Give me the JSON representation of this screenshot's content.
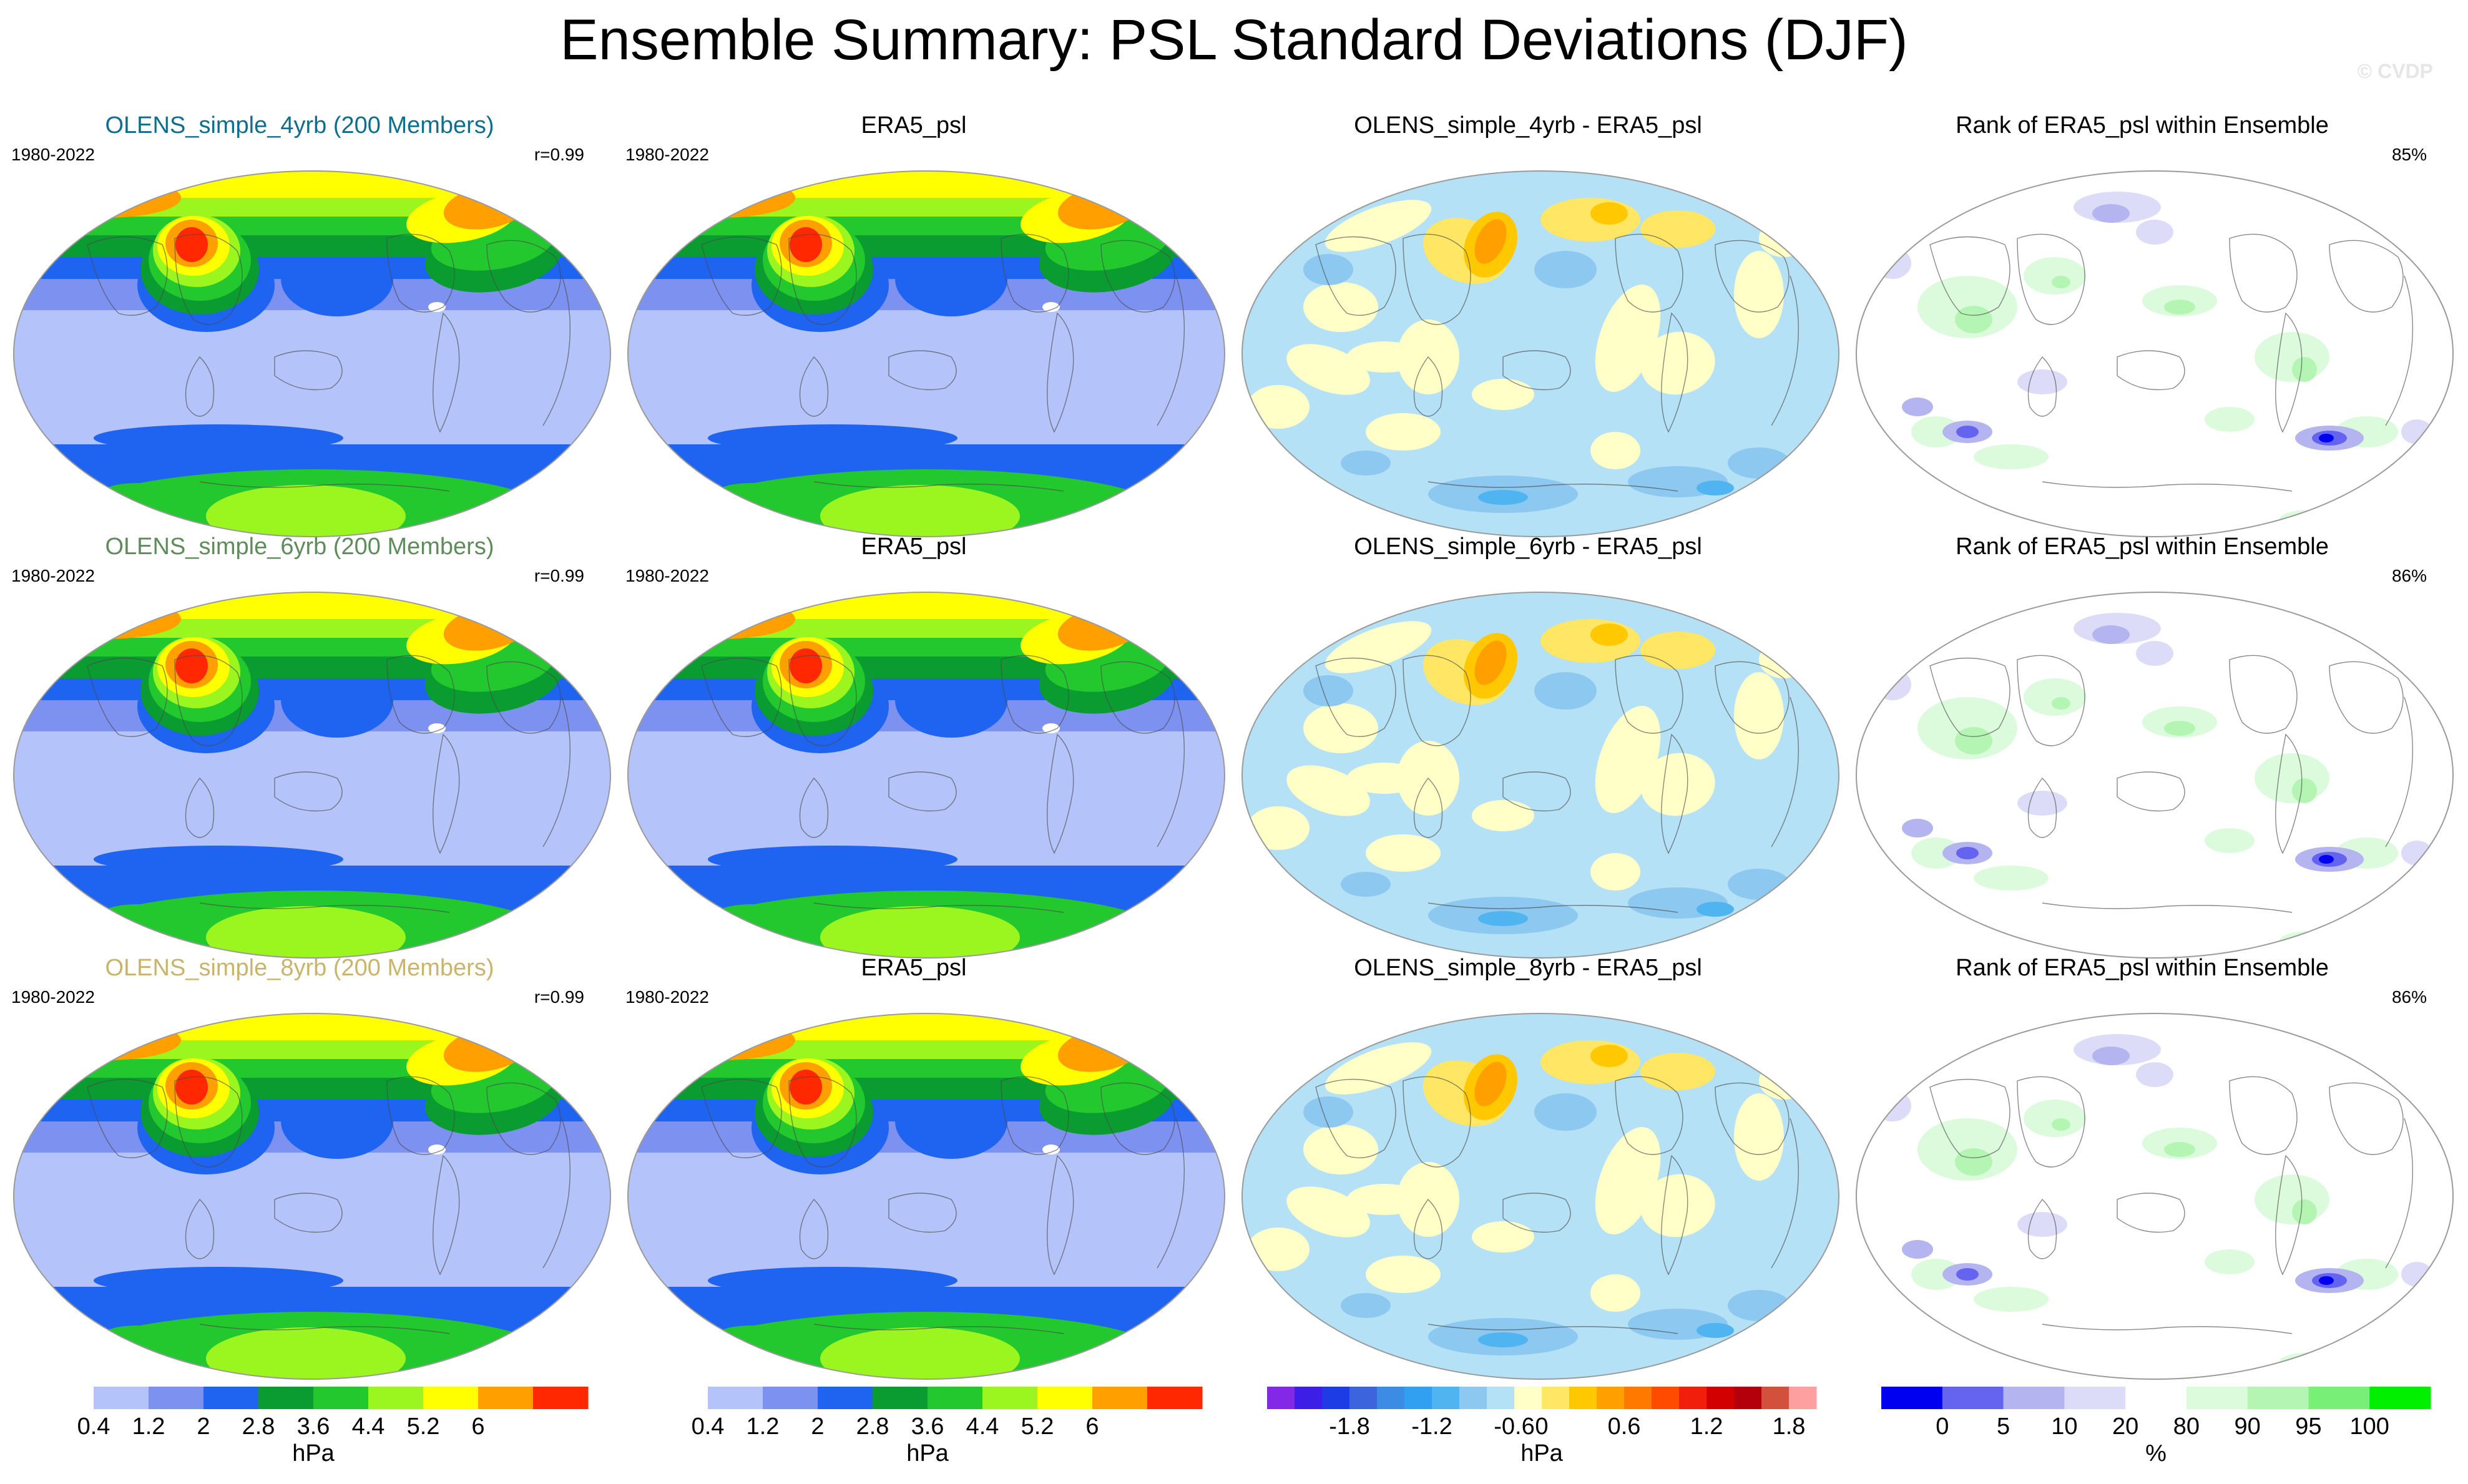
{
  "title": "Ensemble Summary: PSL Standard Deviations (DJF)",
  "copyright": "© CVDP",
  "chart_data": [
    {
      "type": "heatmap",
      "title": "OLENS_simple_4yrb (200 Members)",
      "title_color": "#0e6e8c",
      "period": "1980-2022",
      "stat": "r=0.99",
      "scale": "sd",
      "units": "hPa"
    },
    {
      "type": "heatmap",
      "title": "ERA5_psl",
      "title_color": "#000000",
      "period": "1980-2022",
      "stat": "",
      "scale": "sd",
      "units": "hPa"
    },
    {
      "type": "heatmap",
      "title": "OLENS_simple_4yrb - ERA5_psl",
      "title_color": "#000000",
      "period": "",
      "stat": "",
      "scale": "diff",
      "units": "hPa"
    },
    {
      "type": "heatmap",
      "title": "Rank of ERA5_psl within Ensemble",
      "title_color": "#000000",
      "period": "",
      "stat": "85%",
      "scale": "rank",
      "units": "%"
    },
    {
      "type": "heatmap",
      "title": "OLENS_simple_6yrb (200 Members)",
      "title_color": "#5e8c5a",
      "period": "1980-2022",
      "stat": "r=0.99",
      "scale": "sd",
      "units": "hPa"
    },
    {
      "type": "heatmap",
      "title": "ERA5_psl",
      "title_color": "#000000",
      "period": "1980-2022",
      "stat": "",
      "scale": "sd",
      "units": "hPa"
    },
    {
      "type": "heatmap",
      "title": "OLENS_simple_6yrb - ERA5_psl",
      "title_color": "#000000",
      "period": "",
      "stat": "",
      "scale": "diff",
      "units": "hPa"
    },
    {
      "type": "heatmap",
      "title": "Rank of ERA5_psl within Ensemble",
      "title_color": "#000000",
      "period": "",
      "stat": "86%",
      "scale": "rank",
      "units": "%"
    },
    {
      "type": "heatmap",
      "title": "OLENS_simple_8yrb (200 Members)",
      "title_color": "#c9b46e",
      "period": "1980-2022",
      "stat": "r=0.99",
      "scale": "sd",
      "units": "hPa"
    },
    {
      "type": "heatmap",
      "title": "ERA5_psl",
      "title_color": "#000000",
      "period": "1980-2022",
      "stat": "",
      "scale": "sd",
      "units": "hPa"
    },
    {
      "type": "heatmap",
      "title": "OLENS_simple_8yrb - ERA5_psl",
      "title_color": "#000000",
      "period": "",
      "stat": "",
      "scale": "diff",
      "units": "hPa"
    },
    {
      "type": "heatmap",
      "title": "Rank of ERA5_psl within Ensemble",
      "title_color": "#000000",
      "period": "",
      "stat": "86%",
      "scale": "rank",
      "units": "%"
    }
  ],
  "colorbars": {
    "sd": {
      "units": "hPa",
      "colors": [
        "#ffffff",
        "#b4c3fa",
        "#7d91f0",
        "#1e64f0",
        "#0a9c30",
        "#22c82e",
        "#9bf51e",
        "#ffff00",
        "#ffa000",
        "#ff2800"
      ],
      "ticks": [
        "0.4",
        "1.2",
        "2",
        "2.8",
        "3.6",
        "4.4",
        "5.2",
        "6"
      ],
      "tick_positions": [
        1,
        2,
        3,
        4,
        5,
        6,
        7,
        8
      ]
    },
    "diff": {
      "units": "hPa",
      "colors": [
        "#8228e6",
        "#3c1ee6",
        "#1e3ce6",
        "#3c64dc",
        "#3c8ce6",
        "#32a0f0",
        "#50b4f0",
        "#8cc8f0",
        "#b4e1f5",
        "#ffffc8",
        "#ffe664",
        "#ffc800",
        "#ffa000",
        "#ff7800",
        "#ff4b00",
        "#f01e0a",
        "#d20000",
        "#b4000a",
        "#d2503c",
        "#ffa0a0"
      ],
      "ticks": [
        "-1.8",
        "-1.2",
        "-0.6",
        "0",
        "0.6",
        "1.2",
        "1.8"
      ],
      "tick_positions": [
        3,
        6,
        9,
        10,
        13,
        16,
        19
      ]
    },
    "rank": {
      "units": "%",
      "colors": [
        "#0000f0",
        "#6464f0",
        "#b4b4f0",
        "#dcdcf8",
        "#ffffff",
        "#dcfadc",
        "#b4f5b4",
        "#78f078",
        "#00f000"
      ],
      "ticks": [
        "0",
        "5",
        "10",
        "20",
        "80",
        "90",
        "95",
        "100"
      ],
      "tick_positions": [
        1,
        2,
        3,
        4,
        5,
        6,
        7,
        8
      ]
    }
  }
}
